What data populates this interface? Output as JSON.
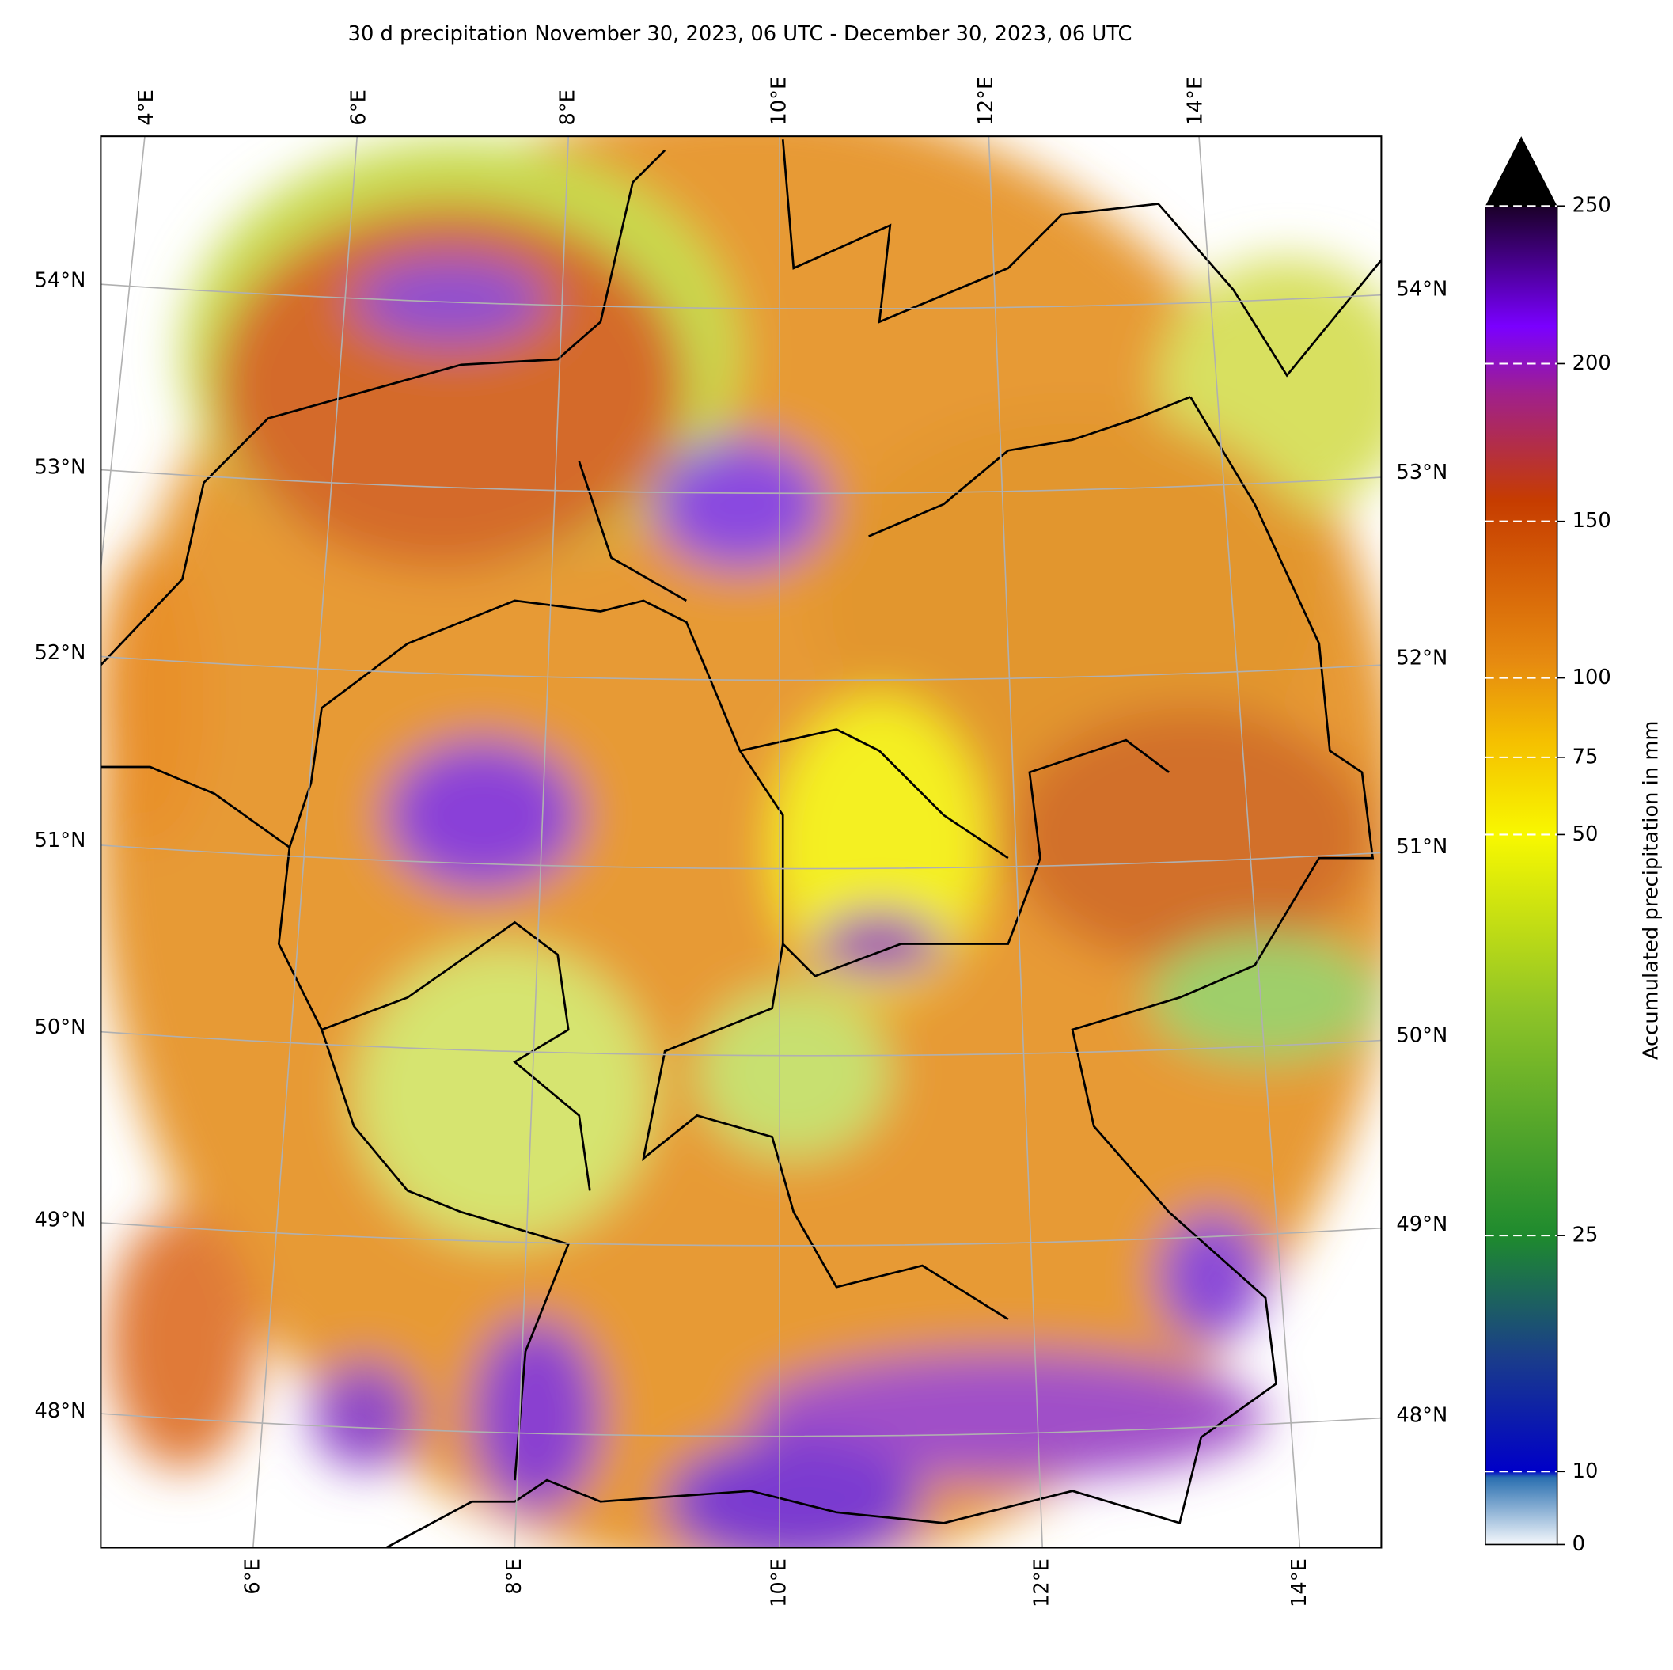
{
  "title": "30 d precipitation November 30, 2023, 06 UTC - December 30, 2023, 06 UTC",
  "map": {
    "lon_labels_top": [
      "4°E",
      "6°E",
      "8°E",
      "10°E",
      "12°E",
      "14°E"
    ],
    "lon_labels_bottom": [
      "6°E",
      "8°E",
      "10°E",
      "12°E",
      "14°E"
    ],
    "lat_labels_left": [
      "54°N",
      "53°N",
      "52°N",
      "51°N",
      "50°N",
      "49°N",
      "48°N"
    ],
    "lat_labels_right": [
      "54°N",
      "53°N",
      "52°N",
      "51°N",
      "50°N",
      "49°N",
      "48°N"
    ]
  },
  "colorbar": {
    "label": "Accumulated precipitation in mm",
    "ticks": [
      0,
      10,
      25,
      50,
      75,
      100,
      150,
      200,
      250
    ]
  }
}
